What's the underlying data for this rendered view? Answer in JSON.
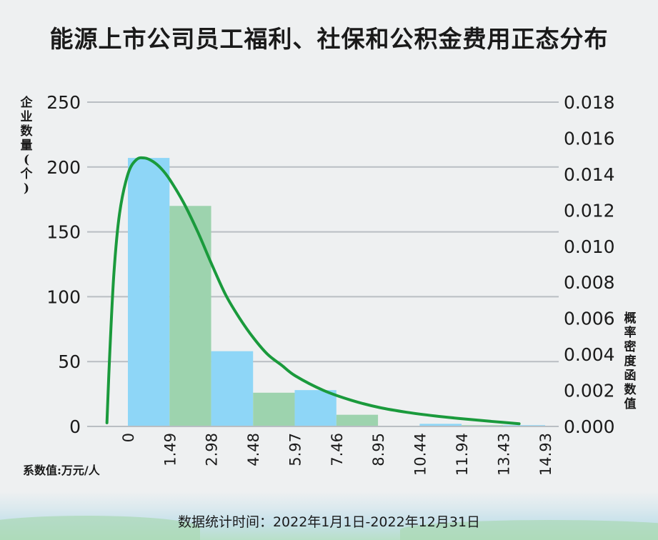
{
  "title": "能源上市公司员工福利、社保和公积金费用正态分布",
  "left_axis_label": "企业数量(个)",
  "right_axis_label": "概率密度函数值",
  "unit_note": "系数值:万元/人",
  "footer": "数据统计时间：2022年1月1日-2022年12月31日",
  "colors": {
    "bar_blue": "#8ed6f7",
    "bar_green": "#9dd3ae",
    "curve": "#1a9a3c",
    "grid": "#b9bec3"
  },
  "chart_data": {
    "type": "bar",
    "title": "能源上市公司员工福利、社保和公积金费用正态分布",
    "xlabel": "",
    "ylabel": "企业数量(个)",
    "y2label": "概率密度函数值",
    "x_ticks": [
      "0",
      "1.49",
      "2.98",
      "4.48",
      "5.97",
      "7.46",
      "8.95",
      "10.44",
      "11.94",
      "13.43",
      "14.93"
    ],
    "bins": [
      {
        "from": 0,
        "to": 1.49,
        "value": 207,
        "color": "blue"
      },
      {
        "from": 1.49,
        "to": 2.98,
        "value": 170,
        "color": "green"
      },
      {
        "from": 2.98,
        "to": 4.48,
        "value": 58,
        "color": "blue"
      },
      {
        "from": 4.48,
        "to": 5.97,
        "value": 26,
        "color": "green"
      },
      {
        "from": 5.97,
        "to": 7.46,
        "value": 28,
        "color": "blue"
      },
      {
        "from": 7.46,
        "to": 8.95,
        "value": 9,
        "color": "green"
      },
      {
        "from": 8.95,
        "to": 10.44,
        "value": 0,
        "color": "blue"
      },
      {
        "from": 10.44,
        "to": 11.94,
        "value": 2,
        "color": "blue"
      },
      {
        "from": 11.94,
        "to": 13.43,
        "value": 1,
        "color": "green"
      },
      {
        "from": 13.43,
        "to": 14.93,
        "value": 1,
        "color": "blue"
      }
    ],
    "ylim": [
      0,
      250
    ],
    "y_ticks": [
      "0",
      "50",
      "100",
      "150",
      "200",
      "250"
    ],
    "y2lim": [
      0,
      0.018
    ],
    "y2_ticks": [
      "0.000",
      "0.002",
      "0.004",
      "0.006",
      "0.008",
      "0.010",
      "0.012",
      "0.014",
      "0.016",
      "0.018"
    ],
    "curve": {
      "x": [
        -0.75,
        -0.65,
        -0.5,
        -0.3,
        0,
        0.3,
        0.6,
        0.9,
        1.2,
        1.5,
        2.0,
        2.5,
        3.0,
        3.5,
        4.0,
        4.5,
        5.0,
        5.5,
        6.0,
        7.0,
        8.0,
        9.0,
        10.0,
        11.0,
        12.0,
        13.0,
        14.0
      ],
      "y": [
        0.0002,
        0.004,
        0.0085,
        0.0118,
        0.014,
        0.0148,
        0.0149,
        0.0147,
        0.0143,
        0.0137,
        0.0124,
        0.0108,
        0.009,
        0.0073,
        0.006,
        0.0049,
        0.004,
        0.0034,
        0.0028,
        0.002,
        0.00145,
        0.00105,
        0.00078,
        0.00058,
        0.00042,
        0.00028,
        0.00015
      ]
    },
    "grid": true
  }
}
